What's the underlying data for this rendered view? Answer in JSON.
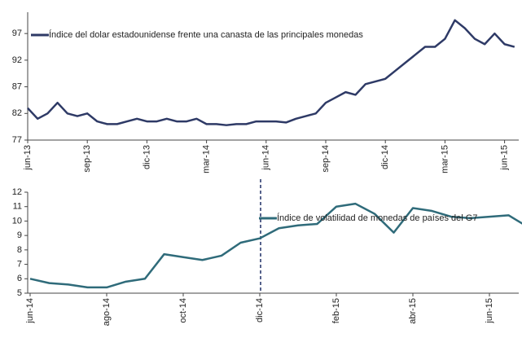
{
  "chart_data": [
    {
      "type": "line",
      "legend": "Índice del dolar estadounidense frente una canasta de las principales monedas",
      "categories": [
        "jun-13",
        null,
        null,
        null,
        null,
        null,
        "sep-13",
        null,
        null,
        null,
        null,
        null,
        "dic-13",
        null,
        null,
        null,
        null,
        null,
        "mar-14",
        null,
        null,
        null,
        null,
        null,
        "jun-14",
        null,
        null,
        null,
        null,
        null,
        "sep-14",
        null,
        null,
        null,
        null,
        null,
        "dic-14",
        null,
        null,
        null,
        null,
        null,
        "mar-15",
        null,
        null,
        null,
        null,
        null,
        "jun-15",
        null
      ],
      "series": [
        {
          "name": "Índice del dolar estadounidense frente una canasta de las principales monedas",
          "color": "#2e3a66",
          "values": [
            83,
            81,
            82,
            84,
            82,
            81.5,
            82,
            80.5,
            80,
            80,
            80.5,
            81,
            80.5,
            80.5,
            81,
            80.5,
            80.5,
            81,
            80,
            80,
            79.8,
            80,
            80,
            80.5,
            80.5,
            80.5,
            80.3,
            81,
            81.5,
            82,
            84,
            85,
            86,
            85.5,
            87.5,
            88,
            88.5,
            90,
            91.5,
            93,
            94.5,
            94.5,
            96,
            99.5,
            98,
            96,
            95,
            97,
            95,
            94.5
          ]
        }
      ],
      "ylim": [
        77,
        101
      ],
      "yticks": [
        77,
        82,
        87,
        92,
        97
      ]
    },
    {
      "type": "line",
      "categories": [
        "jun-14",
        null,
        null,
        null,
        "ago-14",
        null,
        null,
        null,
        "oct-14",
        null,
        null,
        null,
        "dic-14",
        null,
        null,
        null,
        "feb-15",
        null,
        null,
        null,
        "abr-15",
        null,
        null,
        null,
        "jun-15",
        null,
        null
      ],
      "series": [
        {
          "name": "Índice de volatilidad de monedas de países del G7",
          "color": "#2f6b7a",
          "values": [
            6.0,
            5.7,
            5.6,
            5.4,
            5.4,
            5.8,
            6.0,
            7.7,
            7.5,
            7.3,
            7.6,
            8.5,
            8.8,
            9.5,
            9.7,
            9.8,
            11.0,
            11.2,
            10.5,
            9.2,
            10.9,
            10.7,
            10.3,
            10.2,
            10.3,
            10.4,
            9.6
          ]
        }
      ],
      "ylim": [
        5,
        12
      ],
      "yticks": [
        5,
        6,
        7,
        8,
        9,
        10,
        11,
        12
      ]
    }
  ]
}
